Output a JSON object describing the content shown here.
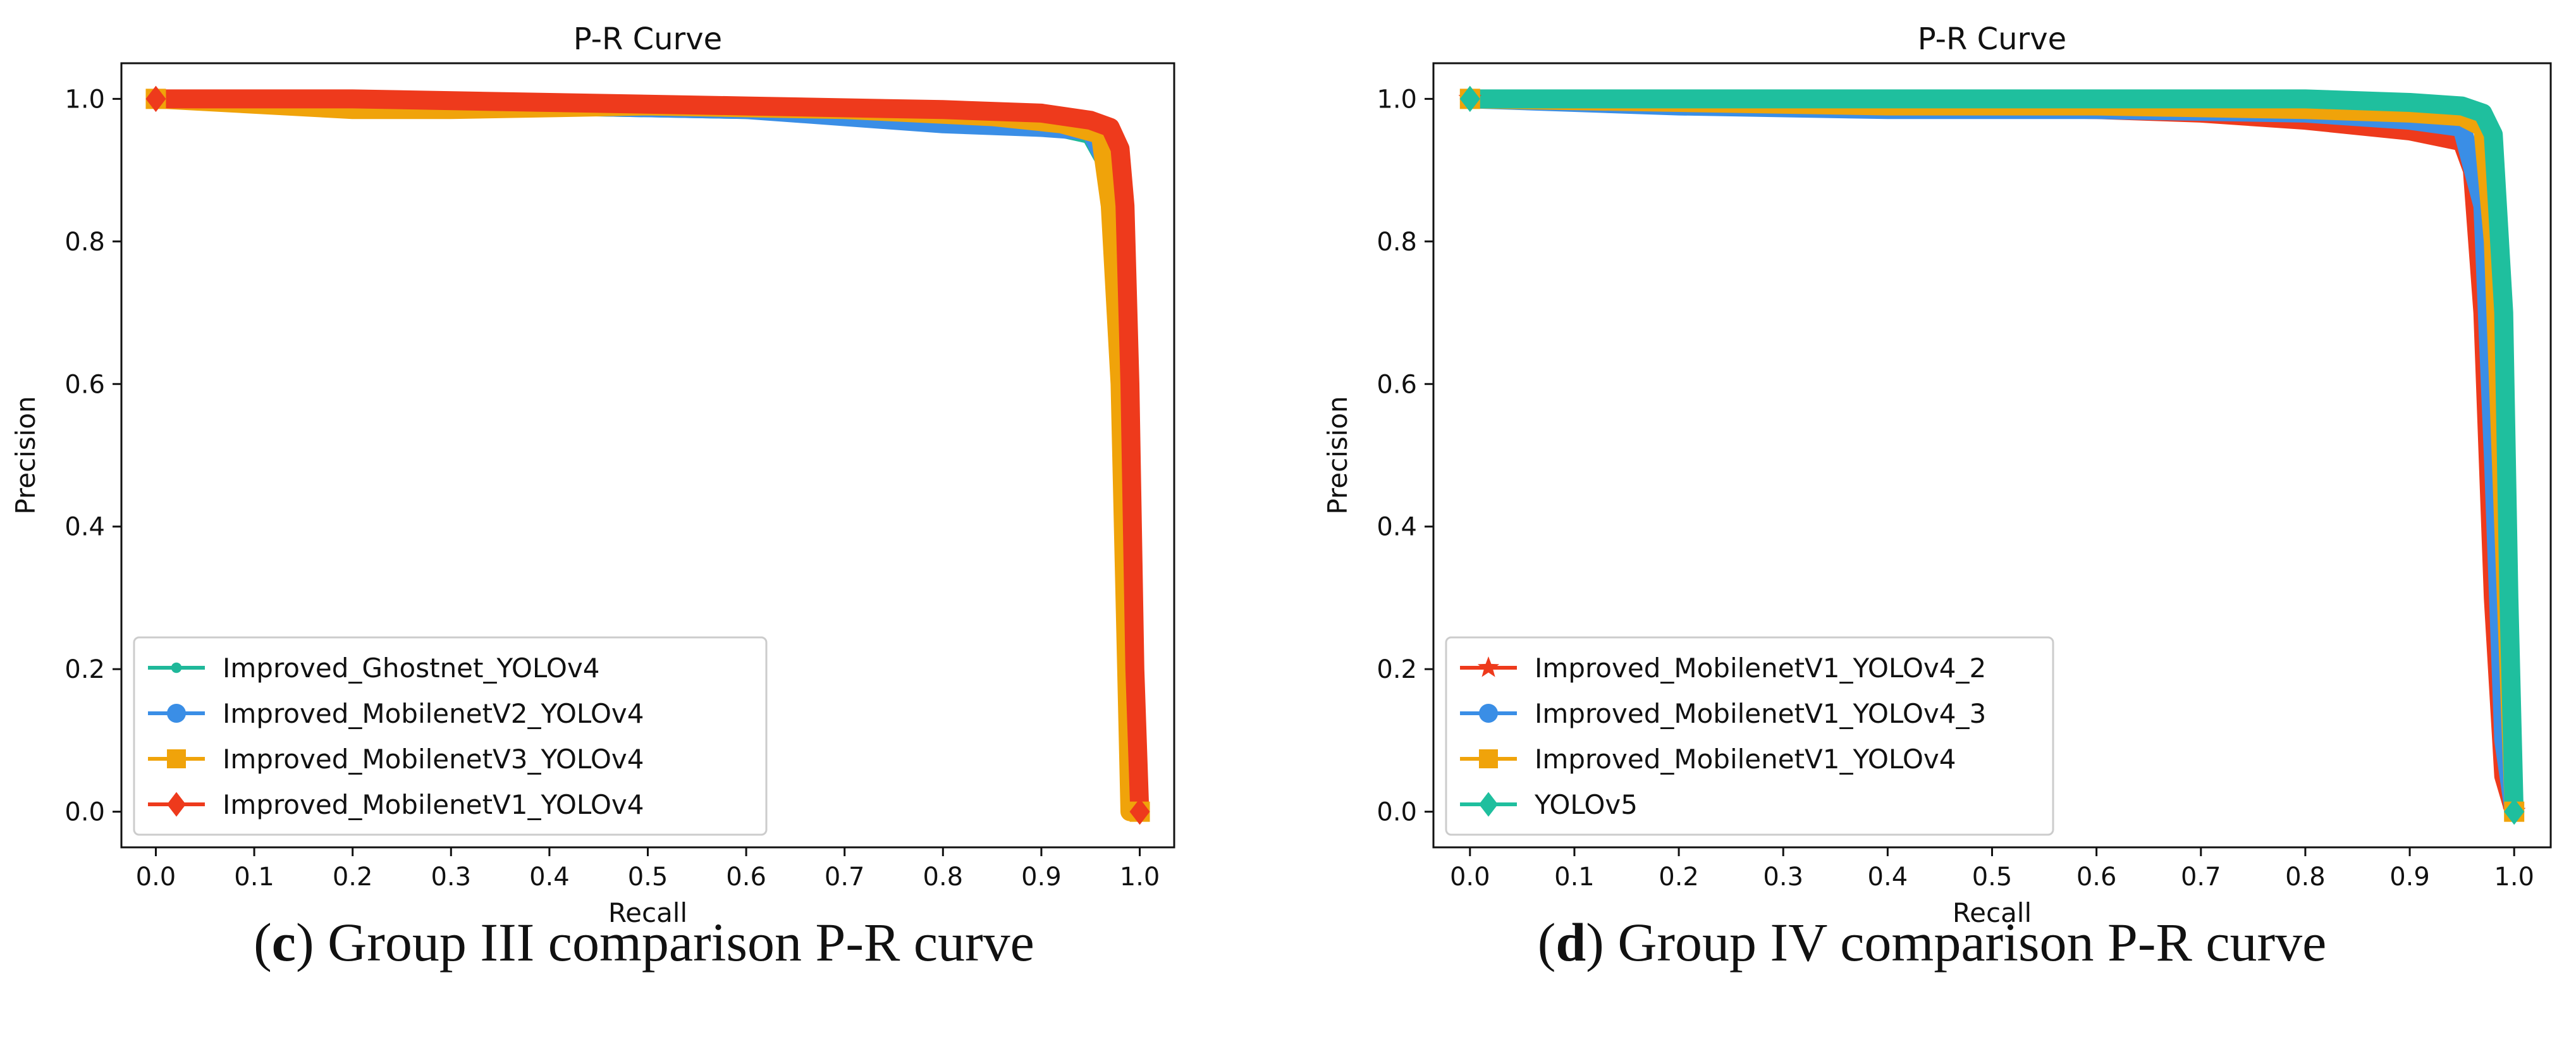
{
  "chart_data": [
    {
      "panel": "c",
      "type": "line",
      "title": "P-R Curve",
      "xlabel": "Recall",
      "ylabel": "Precision",
      "xlim": [
        -0.035,
        1.035
      ],
      "ylim": [
        -0.05,
        1.05
      ],
      "xticks": [
        "0.0",
        "0.1",
        "0.2",
        "0.3",
        "0.4",
        "0.5",
        "0.6",
        "0.7",
        "0.8",
        "0.9",
        "1.0"
      ],
      "yticks": [
        "0.0",
        "0.2",
        "0.4",
        "0.6",
        "0.8",
        "1.0"
      ],
      "legend_position": "lower-left",
      "caption_letter": "c",
      "caption_text": " Group III comparison P-R curve",
      "series": [
        {
          "name": "Improved_Ghostnet_YOLOv4",
          "color": "#1fb89a",
          "marker": "dot",
          "x": [
            0.0,
            0.2,
            0.4,
            0.6,
            0.8,
            0.9,
            0.95,
            0.97,
            0.98,
            0.99,
            0.995,
            1.0
          ],
          "y": [
            1.0,
            0.995,
            0.99,
            0.985,
            0.975,
            0.965,
            0.95,
            0.9,
            0.7,
            0.3,
            0.05,
            0.0
          ]
        },
        {
          "name": "Improved_MobilenetV2_YOLOv4",
          "color": "#3a8ee6",
          "marker": "circle",
          "x": [
            0.0,
            0.2,
            0.4,
            0.6,
            0.7,
            0.8,
            0.9,
            0.95,
            0.97,
            0.98,
            0.99,
            0.995,
            1.0
          ],
          "y": [
            1.0,
            0.995,
            0.99,
            0.985,
            0.975,
            0.965,
            0.96,
            0.955,
            0.9,
            0.75,
            0.4,
            0.1,
            0.0
          ]
        },
        {
          "name": "Improved_MobilenetV3_YOLOv4",
          "color": "#f0a30a",
          "marker": "square",
          "x": [
            0.0,
            0.2,
            0.3,
            0.5,
            0.7,
            0.85,
            0.92,
            0.96,
            0.97,
            0.98,
            0.985,
            0.99,
            1.0
          ],
          "y": [
            1.0,
            0.985,
            0.985,
            0.99,
            0.985,
            0.975,
            0.965,
            0.95,
            0.85,
            0.6,
            0.3,
            0.0,
            0.0
          ]
        },
        {
          "name": "Improved_MobilenetV1_YOLOv4",
          "color": "#ee3a1c",
          "marker": "diamond",
          "x": [
            0.0,
            0.2,
            0.4,
            0.6,
            0.8,
            0.9,
            0.95,
            0.97,
            0.98,
            0.985,
            0.99,
            0.995,
            1.0
          ],
          "y": [
            1.0,
            1.0,
            0.995,
            0.99,
            0.985,
            0.98,
            0.97,
            0.96,
            0.93,
            0.85,
            0.6,
            0.2,
            0.0
          ]
        }
      ]
    },
    {
      "panel": "d",
      "type": "line",
      "title": "P-R Curve",
      "xlabel": "Recall",
      "ylabel": "Precision",
      "xlim": [
        -0.035,
        1.035
      ],
      "ylim": [
        -0.05,
        1.05
      ],
      "xticks": [
        "0.0",
        "0.1",
        "0.2",
        "0.3",
        "0.4",
        "0.5",
        "0.6",
        "0.7",
        "0.8",
        "0.9",
        "1.0"
      ],
      "yticks": [
        "0.0",
        "0.2",
        "0.4",
        "0.6",
        "0.8",
        "1.0"
      ],
      "legend_position": "lower-left",
      "caption_letter": "d",
      "caption_text": " Group IV comparison P-R curve",
      "series": [
        {
          "name": "Improved_MobilenetV1_YOLOv4_2",
          "color": "#ee3a1c",
          "marker": "star",
          "x": [
            0.0,
            0.2,
            0.4,
            0.6,
            0.7,
            0.8,
            0.9,
            0.95,
            0.96,
            0.97,
            0.98,
            0.99,
            1.0
          ],
          "y": [
            1.0,
            0.995,
            0.99,
            0.985,
            0.98,
            0.97,
            0.955,
            0.94,
            0.9,
            0.7,
            0.3,
            0.05,
            0.0
          ]
        },
        {
          "name": "Improved_MobilenetV1_YOLOv4_3",
          "color": "#3a8ee6",
          "marker": "circle",
          "x": [
            0.0,
            0.2,
            0.4,
            0.6,
            0.8,
            0.9,
            0.95,
            0.97,
            0.98,
            0.99,
            1.0
          ],
          "y": [
            1.0,
            0.99,
            0.985,
            0.985,
            0.98,
            0.97,
            0.96,
            0.85,
            0.5,
            0.1,
            0.0
          ]
        },
        {
          "name": "Improved_MobilenetV1_YOLOv4",
          "color": "#f0a30a",
          "marker": "square",
          "x": [
            0.0,
            0.2,
            0.4,
            0.6,
            0.8,
            0.9,
            0.95,
            0.97,
            0.98,
            0.99,
            1.0
          ],
          "y": [
            1.0,
            0.995,
            0.99,
            0.99,
            0.985,
            0.98,
            0.975,
            0.96,
            0.8,
            0.4,
            0.0
          ]
        },
        {
          "name": "YOLOv5",
          "color": "#1fbf9e",
          "marker": "diamond",
          "x": [
            0.0,
            0.2,
            0.4,
            0.6,
            0.8,
            0.9,
            0.95,
            0.97,
            0.98,
            0.99,
            0.995,
            1.0
          ],
          "y": [
            1.0,
            1.0,
            1.0,
            1.0,
            1.0,
            0.995,
            0.99,
            0.98,
            0.95,
            0.7,
            0.3,
            0.0
          ]
        }
      ]
    }
  ]
}
